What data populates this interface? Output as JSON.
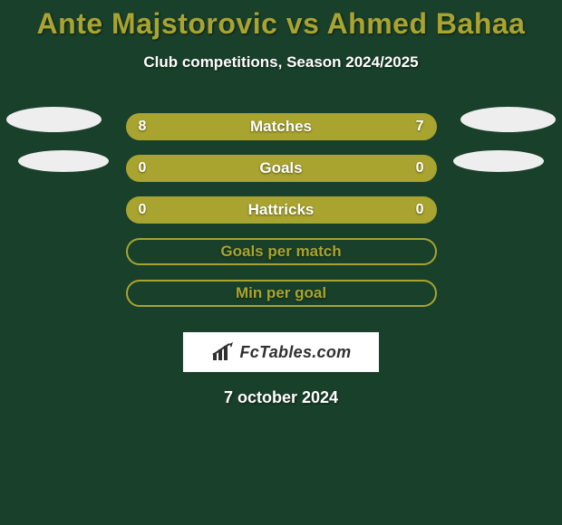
{
  "background_color": "#19402a",
  "ellipse_color": "#eeeeee",
  "text_color": "#ffffff",
  "title": {
    "text": "Ante Majstorovic vs Ahmed Bahaa",
    "color": "#a9a430",
    "fontsize": 32
  },
  "subtitle": {
    "text": "Club competitions, Season 2024/2025",
    "color": "#ffffff",
    "fontsize": 17
  },
  "stats": {
    "bar_fill_color": "#a9a430",
    "bar_hollow_border": "#a9a430",
    "rows": [
      {
        "label": "Matches",
        "left": "8",
        "right": "7",
        "hollow": false,
        "ellipses": "both"
      },
      {
        "label": "Goals",
        "left": "0",
        "right": "0",
        "hollow": false,
        "ellipses": "both"
      },
      {
        "label": "Hattricks",
        "left": "0",
        "right": "0",
        "hollow": false,
        "ellipses": "none"
      },
      {
        "label": "Goals per match",
        "left": "",
        "right": "",
        "hollow": true,
        "ellipses": "none"
      },
      {
        "label": "Min per goal",
        "left": "",
        "right": "",
        "hollow": true,
        "ellipses": "none"
      }
    ]
  },
  "logo": {
    "badge_bg": "#ffffff",
    "text_color": "#303030",
    "text": "FcTables.com"
  },
  "date": {
    "text": "7 october 2024",
    "color": "#ffffff",
    "fontsize": 18
  }
}
